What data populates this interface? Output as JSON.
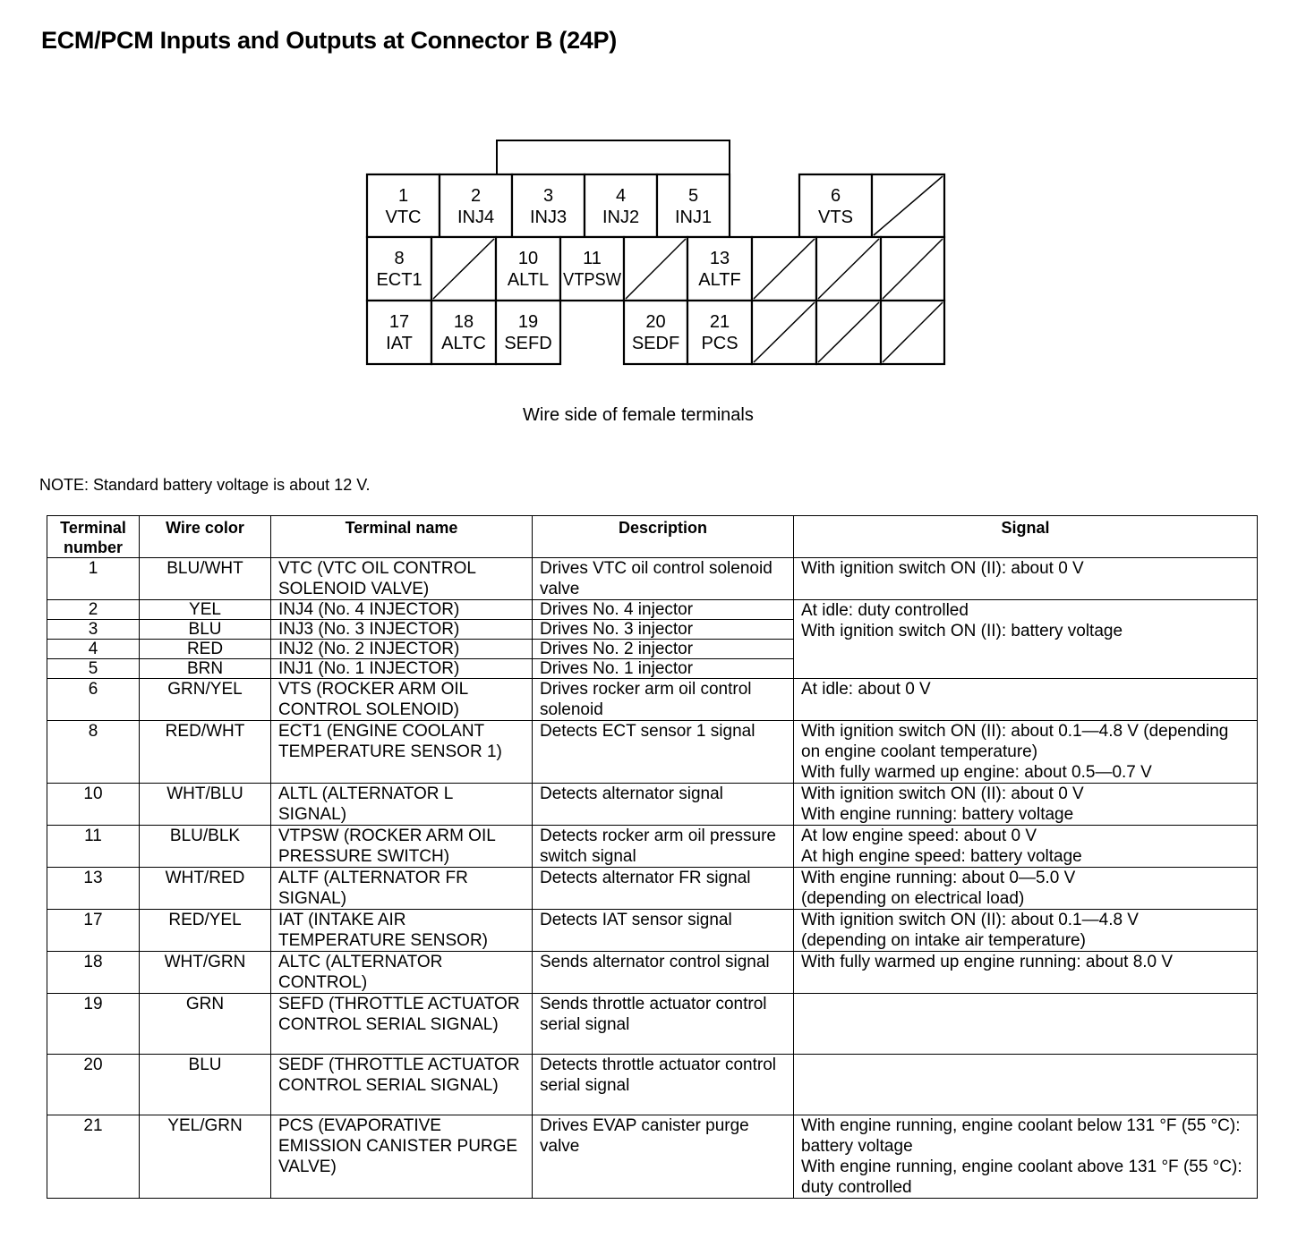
{
  "title": "ECM/PCM Inputs and Outputs at Connector B (24P)",
  "connector": {
    "caption": "Wire side of female terminals",
    "cells": [
      {
        "num": "1",
        "name": "VTC"
      },
      {
        "num": "2",
        "name": "INJ4"
      },
      {
        "num": "3",
        "name": "INJ3"
      },
      {
        "num": "4",
        "name": "INJ2"
      },
      {
        "num": "5",
        "name": "INJ1"
      },
      {
        "num": "6",
        "name": "VTS"
      },
      {
        "num": "8",
        "name": "ECT1"
      },
      {
        "num": "10",
        "name": "ALTL"
      },
      {
        "num": "11",
        "name": "VTPSW"
      },
      {
        "num": "13",
        "name": "ALTF"
      },
      {
        "num": "17",
        "name": "IAT"
      },
      {
        "num": "18",
        "name": "ALTC"
      },
      {
        "num": "19",
        "name": "SEFD"
      },
      {
        "num": "20",
        "name": "SEDF"
      },
      {
        "num": "21",
        "name": "PCS"
      }
    ]
  },
  "note": "NOTE: Standard battery voltage is about 12 V.",
  "table": {
    "headers": [
      "Terminal number",
      "Wire color",
      "Terminal name",
      "Description",
      "Signal"
    ],
    "rows": [
      {
        "num": "1",
        "color": "BLU/WHT",
        "name": "VTC (VTC OIL CONTROL SOLENOID VALVE)",
        "desc": "Drives VTC oil control solenoid valve",
        "signal": "With ignition switch ON (II): about 0 V"
      },
      {
        "num": "2",
        "color": "YEL",
        "name": "INJ4 (No. 4 INJECTOR)",
        "desc": "Drives No. 4 injector",
        "signal": "At idle: duty controlled\nWith ignition switch ON (II): battery voltage"
      },
      {
        "num": "3",
        "color": "BLU",
        "name": "INJ3 (No. 3 INJECTOR)",
        "desc": "Drives No. 3 injector"
      },
      {
        "num": "4",
        "color": "RED",
        "name": "INJ2 (No. 2 INJECTOR)",
        "desc": "Drives No. 2 injector"
      },
      {
        "num": "5",
        "color": "BRN",
        "name": "INJ1 (No. 1 INJECTOR)",
        "desc": "Drives No. 1 injector"
      },
      {
        "num": "6",
        "color": "GRN/YEL",
        "name": "VTS (ROCKER ARM OIL CONTROL SOLENOID)",
        "desc": "Drives rocker arm oil control solenoid",
        "signal": "At idle: about 0 V"
      },
      {
        "num": "8",
        "color": "RED/WHT",
        "name": "ECT1 (ENGINE COOLANT TEMPERATURE SENSOR 1)",
        "desc": "Detects ECT sensor 1 signal",
        "signal": "With ignition switch ON (II): about 0.1—4.8 V (depending on engine coolant temperature)\nWith fully warmed up engine: about 0.5—0.7 V"
      },
      {
        "num": "10",
        "color": "WHT/BLU",
        "name": "ALTL (ALTERNATOR L SIGNAL)",
        "desc": "Detects alternator signal",
        "signal": "With ignition switch ON (II): about 0 V\nWith engine running: battery voltage"
      },
      {
        "num": "11",
        "color": "BLU/BLK",
        "name": "VTPSW (ROCKER ARM OIL PRESSURE SWITCH)",
        "desc": "Detects rocker arm oil pressure switch signal",
        "signal": "At low engine speed: about 0 V\nAt high engine speed: battery voltage"
      },
      {
        "num": "13",
        "color": "WHT/RED",
        "name": "ALTF (ALTERNATOR FR SIGNAL)",
        "desc": "Detects alternator FR signal",
        "signal": "With engine running: about 0—5.0 V\n(depending on electrical load)"
      },
      {
        "num": "17",
        "color": "RED/YEL",
        "name": "IAT (INTAKE AIR TEMPERATURE SENSOR)",
        "desc": "Detects IAT sensor signal",
        "signal": "With ignition switch ON (II): about 0.1—4.8 V\n(depending on intake air temperature)"
      },
      {
        "num": "18",
        "color": "WHT/GRN",
        "name": "ALTC (ALTERNATOR CONTROL)",
        "desc": "Sends alternator control signal",
        "signal": "With fully warmed up engine running: about 8.0 V"
      },
      {
        "num": "19",
        "color": "GRN",
        "name": "SEFD (THROTTLE ACTUATOR CONTROL SERIAL SIGNAL)",
        "desc": "Sends throttle actuator control serial signal",
        "signal": ""
      },
      {
        "num": "20",
        "color": "BLU",
        "name": "SEDF (THROTTLE ACTUATOR CONTROL SERIAL SIGNAL)",
        "desc": "Detects throttle actuator control serial signal",
        "signal": ""
      },
      {
        "num": "21",
        "color": "YEL/GRN",
        "name": "PCS (EVAPORATIVE EMISSION CANISTER PURGE VALVE)",
        "desc": "Drives EVAP canister purge valve",
        "signal": "With engine running, engine coolant below 131 °F (55 °C): battery voltage\nWith engine running, engine coolant above 131 °F (55 °C): duty controlled"
      }
    ]
  }
}
